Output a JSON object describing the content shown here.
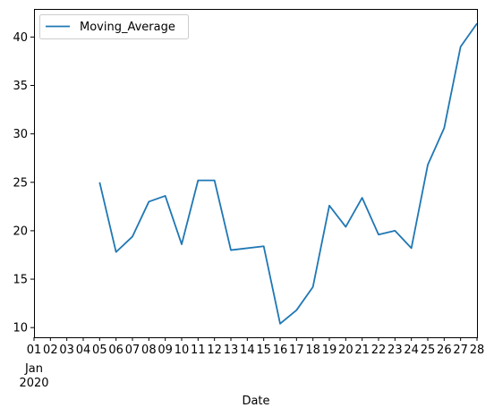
{
  "chart_data": {
    "type": "line",
    "xlabel": "Date",
    "ylabel": "",
    "title": "",
    "x_tick_labels": [
      "01",
      "02",
      "03",
      "04",
      "05",
      "06",
      "07",
      "08",
      "09",
      "10",
      "11",
      "12",
      "13",
      "14",
      "15",
      "16",
      "17",
      "18",
      "19",
      "20",
      "21",
      "22",
      "23",
      "24",
      "25",
      "26",
      "27",
      "28"
    ],
    "x_tick_sublabel_line1": "Jan",
    "x_tick_sublabel_line2": "2020",
    "xlim": [
      "2020-01-01",
      "2020-01-28"
    ],
    "ylim": [
      9.0,
      42.9
    ],
    "y_ticks": [
      10,
      15,
      20,
      25,
      30,
      35,
      40
    ],
    "grid": false,
    "legend_position": "upper-left",
    "series": [
      {
        "name": "Moving_Average",
        "color": "#1f77b4",
        "x": [
          "2020-01-05",
          "2020-01-06",
          "2020-01-07",
          "2020-01-08",
          "2020-01-09",
          "2020-01-10",
          "2020-01-11",
          "2020-01-12",
          "2020-01-13",
          "2020-01-15",
          "2020-01-16",
          "2020-01-17",
          "2020-01-18",
          "2020-01-19",
          "2020-01-20",
          "2020-01-21",
          "2020-01-22",
          "2020-01-23",
          "2020-01-24",
          "2020-01-25",
          "2020-01-26",
          "2020-01-27",
          "2020-01-28"
        ],
        "y": [
          25.0,
          17.8,
          19.4,
          23.0,
          23.6,
          18.6,
          25.2,
          25.2,
          18.0,
          18.4,
          10.4,
          11.8,
          14.2,
          22.6,
          20.4,
          23.4,
          19.6,
          20.0,
          18.2,
          26.8,
          30.6,
          39.0,
          41.4
        ]
      }
    ]
  }
}
